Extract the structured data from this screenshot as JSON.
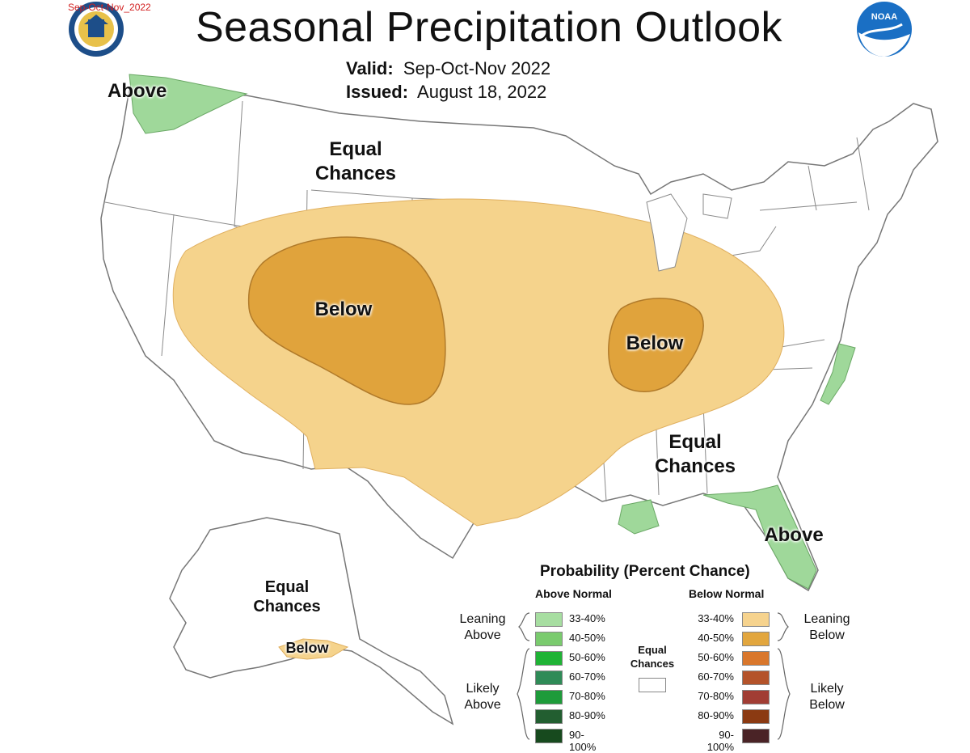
{
  "header": {
    "corner_tag": "Sep-Oct-Nov_2022",
    "title": "Seasonal Precipitation Outlook",
    "valid_label": "Valid:",
    "valid_value": "Sep-Oct-Nov 2022",
    "issued_label": "Issued:",
    "issued_value": "August 18, 2022",
    "left_logo_icon": "doc-seal-icon",
    "right_logo_icon": "noaa-logo-icon",
    "noaa_text": "NOAA"
  },
  "map": {
    "labels": {
      "nw_above": "Above",
      "north_ec_line1": "Equal",
      "north_ec_line2": "Chances",
      "west_below": "Below",
      "midwest_below": "Below",
      "se_ec_line1": "Equal",
      "se_ec_line2": "Chances",
      "fl_above": "Above",
      "ak_ec_line1": "Equal",
      "ak_ec_line2": "Chances",
      "ak_below": "Below"
    },
    "colors": {
      "leaning_below": "#f5d38c",
      "below_40_50": "#e0a33c",
      "leaning_above": "#9fd89a",
      "land": "#ffffff",
      "borders": "#777777"
    }
  },
  "legend": {
    "title": "Probability (Percent Chance)",
    "above_head": "Above Normal",
    "below_head": "Below Normal",
    "equal_chances_line1": "Equal",
    "equal_chances_line2": "Chances",
    "leaning_above_line1": "Leaning",
    "leaning_above_line2": "Above",
    "likely_above_line1": "Likely",
    "likely_above_line2": "Above",
    "leaning_below_line1": "Leaning",
    "leaning_below_line2": "Below",
    "likely_below_line1": "Likely",
    "likely_below_line2": "Below",
    "above_rows": [
      {
        "range": "33-40%",
        "color": "#a7dea1"
      },
      {
        "range": "40-50%",
        "color": "#7acb6e"
      },
      {
        "range": "50-60%",
        "color": "#1fb335"
      },
      {
        "range": "60-70%",
        "color": "#2f8b57"
      },
      {
        "range": "70-80%",
        "color": "#1e9b3a"
      },
      {
        "range": "80-90%",
        "color": "#225e30"
      },
      {
        "range": "90-100%",
        "color": "#174a1e"
      }
    ],
    "below_rows": [
      {
        "range": "33-40%",
        "color": "#f6d38e"
      },
      {
        "range": "40-50%",
        "color": "#e2a63e"
      },
      {
        "range": "50-60%",
        "color": "#d9772c"
      },
      {
        "range": "60-70%",
        "color": "#b4532a"
      },
      {
        "range": "70-80%",
        "color": "#a13d34"
      },
      {
        "range": "80-90%",
        "color": "#8b3a12"
      },
      {
        "range": "90-100%",
        "color": "#4a2326"
      }
    ]
  }
}
